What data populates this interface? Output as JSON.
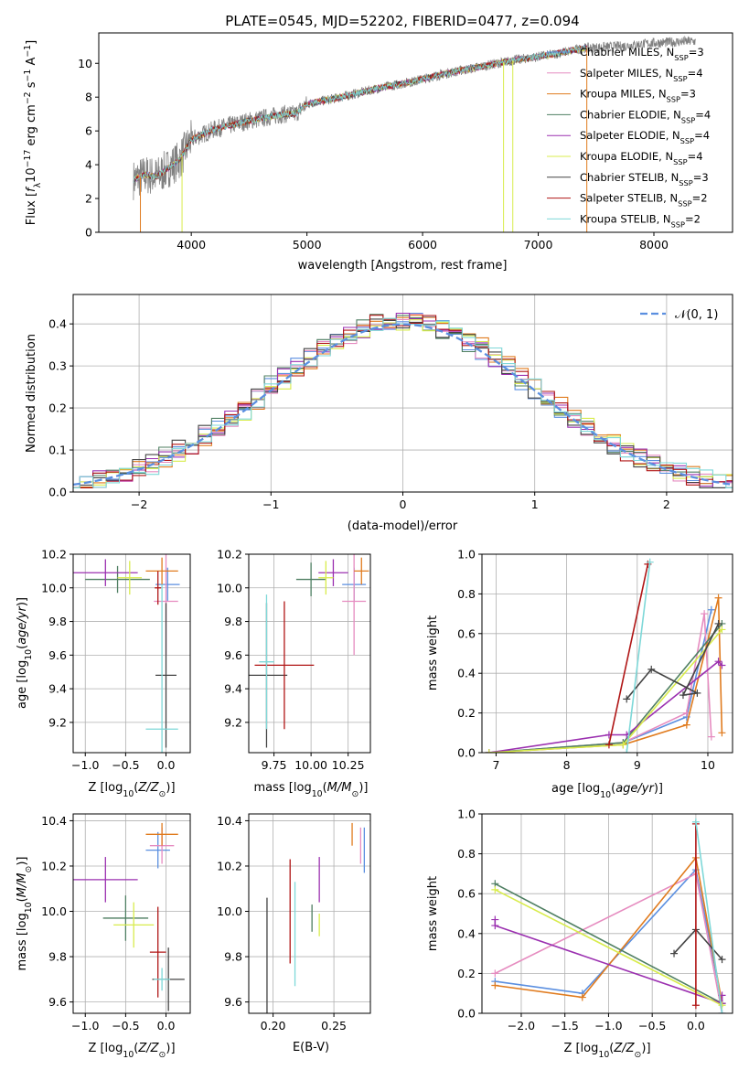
{
  "figure_title": "PLATE=0545, MJD=52202, FIBERID=0477, z=0.094",
  "colors": {
    "Chabrier MILES": "#5b8fe0",
    "Salpeter MILES": "#e68cc0",
    "Kroupa MILES": "#e07b1e",
    "Chabrier ELODIE": "#4f7f62",
    "Salpeter ELODIE": "#9b30b0",
    "Kroupa ELODIE": "#d8ec4c",
    "Chabrier STELIB": "#444444",
    "Salpeter STELIB": "#b01616",
    "Kroupa STELIB": "#7ed8d8",
    "observed": "#808080"
  },
  "chart_data": [
    {
      "id": "spectrum",
      "type": "line",
      "xlabel": "wavelength [Angstrom, rest frame]",
      "ylabel": "Flux [f_λ 10^-17 erg cm^-2 s^-1 A^-1]",
      "xlim": [
        3200,
        8680
      ],
      "ylim": [
        0,
        11.8
      ],
      "xticks": [
        4000,
        5000,
        6000,
        7000,
        8000
      ],
      "yticks": [
        0,
        2,
        4,
        6,
        8,
        10
      ],
      "legend": "top-right",
      "observed_anchors": [
        [
          3500,
          3.1
        ],
        [
          3600,
          3.4
        ],
        [
          3700,
          3.3
        ],
        [
          3800,
          3.8
        ],
        [
          3900,
          4.3
        ],
        [
          4000,
          5.5
        ],
        [
          4200,
          6.1
        ],
        [
          4500,
          6.6
        ],
        [
          4800,
          7.0
        ],
        [
          4900,
          7.0
        ],
        [
          5000,
          7.6
        ],
        [
          5300,
          8.0
        ],
        [
          5600,
          8.5
        ],
        [
          5900,
          8.9
        ],
        [
          6200,
          9.4
        ],
        [
          6500,
          9.8
        ],
        [
          6800,
          10.2
        ],
        [
          7100,
          10.5
        ],
        [
          7400,
          10.9
        ],
        [
          7700,
          11.0
        ],
        [
          8000,
          11.2
        ],
        [
          8300,
          11.3
        ]
      ],
      "model_xmax": 7420,
      "series": [
        {
          "name": "Chabrier MILES, N_SSP=3",
          "label_main": "Chabrier MILES, N",
          "label_sub": "SSP",
          "label_end": "=3"
        },
        {
          "name": "Salpeter MILES, N_SSP=4",
          "label_main": "Salpeter MILES, N",
          "label_sub": "SSP",
          "label_end": "=4"
        },
        {
          "name": "Kroupa MILES, N_SSP=3",
          "label_main": "Kroupa MILES, N",
          "label_sub": "SSP",
          "label_end": "=3"
        },
        {
          "name": "Chabrier ELODIE, N_SSP=4",
          "label_main": "Chabrier ELODIE, N",
          "label_sub": "SSP",
          "label_end": "=4"
        },
        {
          "name": "Salpeter ELODIE, N_SSP=4",
          "label_main": "Salpeter ELODIE, N",
          "label_sub": "SSP",
          "label_end": "=4"
        },
        {
          "name": "Kroupa ELODIE, N_SSP=4",
          "label_main": "Kroupa ELODIE, N",
          "label_sub": "SSP",
          "label_end": "=4"
        },
        {
          "name": "Chabrier STELIB, N_SSP=3",
          "label_main": "Chabrier STELIB, N",
          "label_sub": "SSP",
          "label_end": "=3"
        },
        {
          "name": "Salpeter STELIB, N_SSP=2",
          "label_main": "Salpeter STELIB, N",
          "label_sub": "SSP",
          "label_end": "=2"
        },
        {
          "name": "Kroupa STELIB, N_SSP=2",
          "label_main": "Kroupa STELIB, N",
          "label_sub": "SSP",
          "label_end": "=2"
        }
      ]
    },
    {
      "id": "residuals",
      "type": "step",
      "xlabel": "(data-model)/error",
      "ylabel": "Normed distribution",
      "xlim": [
        -2.5,
        2.5
      ],
      "ylim": [
        0,
        0.47
      ],
      "xticks": [
        -2,
        -1,
        0,
        1,
        2
      ],
      "yticks": [
        0.0,
        0.1,
        0.2,
        0.3,
        0.4
      ],
      "bin_width": 0.1,
      "legend": "top-right",
      "legend_label": "𝒩(0, 1)",
      "reference_curve": "gaussian mean 0 sigma 1"
    },
    {
      "id": "age_vs_Z",
      "type": "errorbar",
      "xlabel": "Z [log10(Z/Z⊙)]",
      "ylabel": "age [log10(age/yr)]",
      "xlim": [
        -1.15,
        0.3
      ],
      "ylim": [
        9.02,
        10.2
      ],
      "xticks": [
        -1.0,
        -0.5,
        0.0
      ],
      "yticks": [
        9.2,
        9.4,
        9.6,
        9.8,
        10.0,
        10.2
      ],
      "points": [
        {
          "s": "Chabrier MILES",
          "x": 0.02,
          "y": 10.02,
          "xe": 0.15,
          "ye": 0.1
        },
        {
          "s": "Salpeter MILES",
          "x": 0.0,
          "y": 9.92,
          "xe": 0.15,
          "ye": 0.32
        },
        {
          "s": "Kroupa MILES",
          "x": -0.05,
          "y": 10.1,
          "xe": 0.2,
          "ye": 0.08
        },
        {
          "s": "Chabrier ELODIE",
          "x": -0.6,
          "y": 10.05,
          "xe": 0.4,
          "ye": 0.08
        },
        {
          "s": "Salpeter ELODIE",
          "x": -0.75,
          "y": 10.09,
          "xe": 0.4,
          "ye": 0.08
        },
        {
          "s": "Kroupa ELODIE",
          "x": -0.45,
          "y": 10.06,
          "xe": 0.15,
          "ye": 0.1
        },
        {
          "s": "Chabrier STELIB",
          "x": 0.0,
          "y": 9.48,
          "xe": 0.13,
          "ye": 0.43
        },
        {
          "s": "Salpeter STELIB",
          "x": -0.1,
          "y": 10.0,
          "xe": 0.04,
          "ye": 0.1
        },
        {
          "s": "Kroupa STELIB",
          "x": -0.05,
          "y": 9.16,
          "xe": 0.2,
          "ye": 0.86
        }
      ]
    },
    {
      "id": "age_vs_mass",
      "type": "errorbar",
      "xlabel": "mass [log10(M/M⊙)]",
      "ylabel": "",
      "xlim": [
        9.58,
        10.4
      ],
      "ylim": [
        9.02,
        10.2
      ],
      "xticks": [
        9.75,
        10.0,
        10.25
      ],
      "xtick_labels": [
        "9.75",
        "10.00",
        "10.25"
      ],
      "yticks": [
        9.2,
        9.4,
        9.6,
        9.8,
        10.0,
        10.2
      ],
      "points": [
        {
          "s": "Chabrier MILES",
          "x": 10.29,
          "y": 10.02,
          "xe": 0.08,
          "ye": 0.1
        },
        {
          "s": "Salpeter MILES",
          "x": 10.29,
          "y": 9.92,
          "xe": 0.08,
          "ye": 0.32
        },
        {
          "s": "Kroupa MILES",
          "x": 10.34,
          "y": 10.1,
          "xe": 0.05,
          "ye": 0.08
        },
        {
          "s": "Chabrier ELODIE",
          "x": 10.0,
          "y": 10.05,
          "xe": 0.1,
          "ye": 0.1
        },
        {
          "s": "Salpeter ELODIE",
          "x": 10.15,
          "y": 10.09,
          "xe": 0.1,
          "ye": 0.08
        },
        {
          "s": "Kroupa ELODIE",
          "x": 10.1,
          "y": 10.06,
          "xe": 0.05,
          "ye": 0.1
        },
        {
          "s": "Chabrier STELIB",
          "x": 9.7,
          "y": 9.48,
          "xe": 0.14,
          "ye": 0.43
        },
        {
          "s": "Salpeter STELIB",
          "x": 9.82,
          "y": 9.54,
          "xe": 0.2,
          "ye": 0.38
        },
        {
          "s": "Kroupa STELIB",
          "x": 9.7,
          "y": 9.56,
          "xe": 0.05,
          "ye": 0.4
        }
      ]
    },
    {
      "id": "weight_vs_age",
      "type": "line",
      "xlabel": "age [log10(age/yr)]",
      "ylabel": "mass weight",
      "xlim": [
        6.8,
        10.35
      ],
      "ylim": [
        0,
        1.0
      ],
      "xticks": [
        7,
        8,
        9,
        10
      ],
      "yticks": [
        0.0,
        0.2,
        0.4,
        0.6,
        0.8,
        1.0
      ],
      "series": [
        {
          "s": "Chabrier MILES",
          "x": [
            6.9,
            8.8,
            9.7,
            10.05
          ],
          "y": [
            0.0,
            0.05,
            0.18,
            0.72
          ]
        },
        {
          "s": "Salpeter MILES",
          "x": [
            6.9,
            8.8,
            9.7,
            9.95,
            10.05
          ],
          "y": [
            0.0,
            0.05,
            0.2,
            0.7,
            0.08
          ]
        },
        {
          "s": "Kroupa MILES",
          "x": [
            6.9,
            8.8,
            9.7,
            10.15,
            10.2
          ],
          "y": [
            0.0,
            0.04,
            0.14,
            0.78,
            0.1
          ]
        },
        {
          "s": "Chabrier ELODIE",
          "x": [
            6.9,
            8.8,
            10.2
          ],
          "y": [
            0.0,
            0.05,
            0.65
          ]
        },
        {
          "s": "Salpeter ELODIE",
          "x": [
            6.9,
            8.6,
            8.85,
            10.15,
            10.2
          ],
          "y": [
            0.0,
            0.09,
            0.09,
            0.46,
            0.44
          ]
        },
        {
          "s": "Kroupa ELODIE",
          "x": [
            6.9,
            8.8,
            10.2
          ],
          "y": [
            0.0,
            0.04,
            0.62
          ]
        },
        {
          "s": "Chabrier STELIB",
          "x": [
            8.85,
            9.2,
            9.85,
            9.65,
            10.15
          ],
          "y": [
            0.27,
            0.42,
            0.3,
            0.29,
            0.65
          ]
        },
        {
          "s": "Salpeter STELIB",
          "x": [
            8.6,
            9.15
          ],
          "y": [
            0.04,
            0.95
          ]
        },
        {
          "s": "Kroupa STELIB",
          "x": [
            8.85,
            9.18
          ],
          "y": [
            0.0,
            0.96
          ]
        }
      ]
    },
    {
      "id": "mass_vs_Z",
      "type": "errorbar",
      "xlabel": "Z [log10(Z/Z⊙)]",
      "ylabel": "mass [log10(M/M⊙)]",
      "xlim": [
        -1.15,
        0.3
      ],
      "ylim": [
        9.55,
        10.43
      ],
      "xticks": [
        -1.0,
        -0.5,
        0.0
      ],
      "yticks": [
        9.6,
        9.8,
        10.0,
        10.2,
        10.4
      ],
      "points": [
        {
          "s": "Chabrier MILES",
          "x": -0.1,
          "y": 10.27,
          "xe": 0.15,
          "ye": 0.08
        },
        {
          "s": "Salpeter MILES",
          "x": -0.05,
          "y": 10.29,
          "xe": 0.15,
          "ye": 0.08
        },
        {
          "s": "Kroupa MILES",
          "x": -0.05,
          "y": 10.34,
          "xe": 0.2,
          "ye": 0.05
        },
        {
          "s": "Chabrier ELODIE",
          "x": -0.5,
          "y": 9.97,
          "xe": 0.28,
          "ye": 0.1
        },
        {
          "s": "Salpeter ELODIE",
          "x": -0.75,
          "y": 10.14,
          "xe": 0.4,
          "ye": 0.1
        },
        {
          "s": "Kroupa ELODIE",
          "x": -0.4,
          "y": 9.94,
          "xe": 0.25,
          "ye": 0.1
        },
        {
          "s": "Chabrier STELIB",
          "x": 0.03,
          "y": 9.7,
          "xe": 0.2,
          "ye": 0.14
        },
        {
          "s": "Salpeter STELIB",
          "x": -0.1,
          "y": 9.82,
          "xe": 0.1,
          "ye": 0.2
        },
        {
          "s": "Kroupa STELIB",
          "x": -0.05,
          "y": 9.7,
          "xe": 0.1,
          "ye": 0.05
        }
      ]
    },
    {
      "id": "mass_vs_EBV",
      "type": "errorbar",
      "xlabel": "E(B-V)",
      "ylabel": "",
      "xlim": [
        0.18,
        0.28
      ],
      "ylim": [
        9.55,
        10.43
      ],
      "xticks": [
        0.2,
        0.25
      ],
      "xtick_labels": [
        "0.20",
        "0.25"
      ],
      "yticks": [
        9.6,
        9.8,
        10.0,
        10.2,
        10.4
      ],
      "points": [
        {
          "s": "Chabrier MILES",
          "x": 0.275,
          "y": 10.27,
          "xe": 0,
          "ye": 0.1
        },
        {
          "s": "Salpeter MILES",
          "x": 0.272,
          "y": 10.29,
          "xe": 0,
          "ye": 0.08
        },
        {
          "s": "Kroupa MILES",
          "x": 0.265,
          "y": 10.34,
          "xe": 0,
          "ye": 0.05
        },
        {
          "s": "Chabrier ELODIE",
          "x": 0.232,
          "y": 9.97,
          "xe": 0,
          "ye": 0.06
        },
        {
          "s": "Salpeter ELODIE",
          "x": 0.238,
          "y": 10.14,
          "xe": 0,
          "ye": 0.1
        },
        {
          "s": "Kroupa ELODIE",
          "x": 0.238,
          "y": 9.94,
          "xe": 0,
          "ye": 0.05
        },
        {
          "s": "Chabrier STELIB",
          "x": 0.195,
          "y": 9.7,
          "xe": 0,
          "ye": 0.36
        },
        {
          "s": "Salpeter STELIB",
          "x": 0.214,
          "y": 10.0,
          "xe": 0,
          "ye": 0.23
        },
        {
          "s": "Kroupa STELIB",
          "x": 0.218,
          "y": 9.9,
          "xe": 0,
          "ye": 0.23
        }
      ]
    },
    {
      "id": "weight_vs_Z",
      "type": "line",
      "xlabel": "Z [log10(Z/Z⊙)]",
      "ylabel": "mass weight",
      "xlim": [
        -2.45,
        0.42
      ],
      "ylim": [
        0,
        1.0
      ],
      "xticks": [
        -2.0,
        -1.5,
        -1.0,
        -0.5,
        0.0
      ],
      "yticks": [
        0.0,
        0.2,
        0.4,
        0.6,
        0.8,
        1.0
      ],
      "series": [
        {
          "s": "Chabrier MILES",
          "x": [
            -2.3,
            -1.3,
            0.0,
            0.3
          ],
          "y": [
            0.16,
            0.1,
            0.72,
            0.05
          ]
        },
        {
          "s": "Salpeter MILES",
          "x": [
            -2.3,
            0.0,
            0.3
          ],
          "y": [
            0.2,
            0.7,
            0.0
          ]
        },
        {
          "s": "Kroupa MILES",
          "x": [
            -2.3,
            -1.3,
            0.0,
            0.3
          ],
          "y": [
            0.14,
            0.08,
            0.78,
            0.05
          ]
        },
        {
          "s": "Chabrier ELODIE",
          "x": [
            -2.3,
            0.3
          ],
          "y": [
            0.65,
            0.05
          ]
        },
        {
          "s": "Salpeter ELODIE",
          "x": [
            -2.3,
            -2.3,
            0.3,
            0.3
          ],
          "y": [
            0.47,
            0.44,
            0.05,
            0.09
          ]
        },
        {
          "s": "Kroupa ELODIE",
          "x": [
            -2.3,
            0.3
          ],
          "y": [
            0.62,
            0.04
          ]
        },
        {
          "s": "Chabrier STELIB",
          "x": [
            -0.25,
            0.0,
            0.3
          ],
          "y": [
            0.3,
            0.42,
            0.27
          ]
        },
        {
          "s": "Salpeter STELIB",
          "x": [
            0.0,
            0.0
          ],
          "y": [
            0.04,
            0.95
          ]
        },
        {
          "s": "Kroupa STELIB",
          "x": [
            0.0,
            0.3
          ],
          "y": [
            0.96,
            0.0
          ]
        }
      ]
    }
  ]
}
